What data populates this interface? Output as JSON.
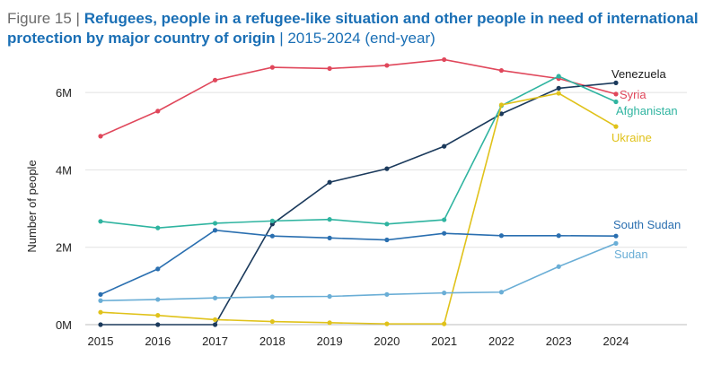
{
  "title": {
    "figure": "Figure 15 |",
    "main": "Refugees, people in a refugee-like situation and other people in need of international protection by major country of origin",
    "sub": "| 2015-2024 (end-year)"
  },
  "chart_data": {
    "type": "line",
    "title": "Refugees, people in a refugee-like situation and other people in need of international protection by major country of origin",
    "xlabel": "",
    "ylabel": "Number of people",
    "x": [
      "2015",
      "2016",
      "2017",
      "2018",
      "2019",
      "2020",
      "2021",
      "2022",
      "2023",
      "2024"
    ],
    "yticks": [
      "0M",
      "2M",
      "4M",
      "6M"
    ],
    "ylim": [
      0,
      7000000
    ],
    "grid": true,
    "series": [
      {
        "name": "Syria",
        "color": "#e0475b",
        "values": [
          4870000,
          5520000,
          6320000,
          6650000,
          6620000,
          6700000,
          6850000,
          6570000,
          6360000,
          5960000
        ]
      },
      {
        "name": "Venezuela",
        "color": "#1b3a5c",
        "values": [
          0,
          0,
          0,
          2600000,
          3680000,
          4030000,
          4610000,
          5450000,
          6110000,
          6250000
        ]
      },
      {
        "name": "Afghanistan",
        "color": "#2fb4a0",
        "values": [
          2670000,
          2500000,
          2620000,
          2680000,
          2720000,
          2600000,
          2710000,
          5660000,
          6420000,
          5760000
        ]
      },
      {
        "name": "Ukraine",
        "color": "#e0c21a",
        "values": [
          320000,
          240000,
          130000,
          80000,
          50000,
          20000,
          20000,
          5680000,
          5980000,
          5120000
        ]
      },
      {
        "name": "South Sudan",
        "color": "#2a6fb0",
        "values": [
          780000,
          1440000,
          2440000,
          2290000,
          2240000,
          2190000,
          2360000,
          2300000,
          2300000,
          2290000
        ]
      },
      {
        "name": "Sudan",
        "color": "#6aaed6",
        "values": [
          620000,
          650000,
          690000,
          720000,
          730000,
          780000,
          820000,
          840000,
          1500000,
          2100000
        ]
      }
    ]
  }
}
